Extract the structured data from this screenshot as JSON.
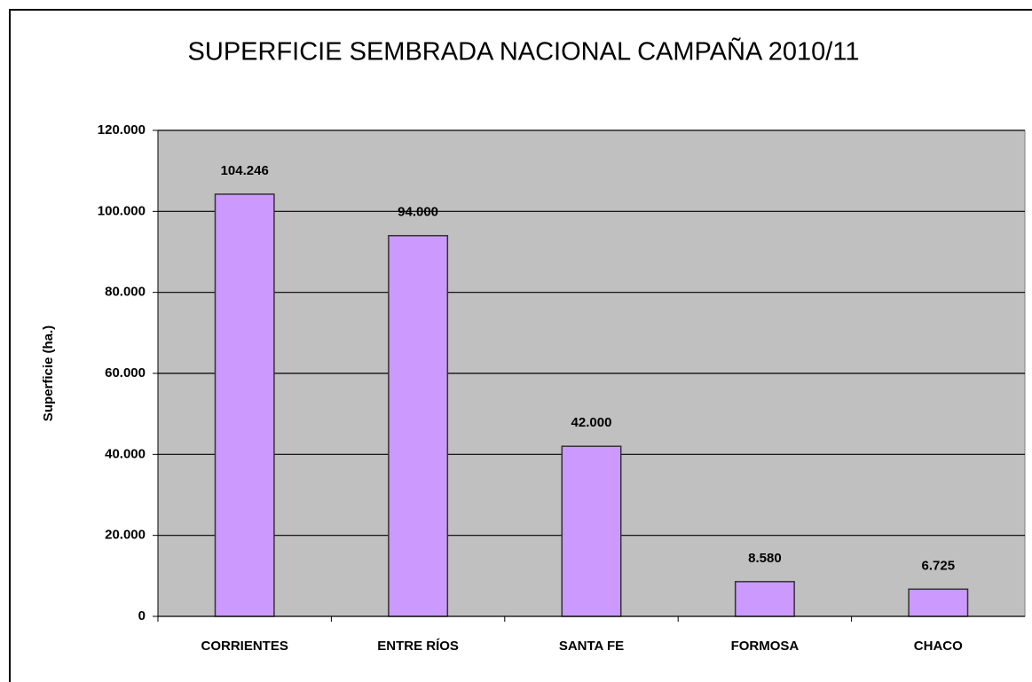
{
  "chart_data": {
    "type": "bar",
    "title": "SUPERFICIE SEMBRADA NACIONAL CAMPAÑA 2010/11",
    "y_label": "Superficie (ha.)",
    "categories": [
      "CORRIENTES",
      "ENTRE RÍOS",
      "SANTA FE",
      "FORMOSA",
      "CHACO"
    ],
    "values": [
      104246,
      94000,
      42000,
      8580,
      6725
    ],
    "value_labels": [
      "104.246",
      "94.000",
      "42.000",
      "8.580",
      "6.725"
    ],
    "color": "#cc99ff",
    "ylim": [
      0,
      120000
    ],
    "yticks": [
      0,
      {
        "value": 20000,
        "label": "20.000"
      },
      {
        "value": 40000,
        "label": "40.000"
      },
      {
        "value": 60000,
        "label": "60.000"
      },
      {
        "value": 80000,
        "label": "80.000"
      },
      {
        "value": 100000,
        "label": "100.000"
      },
      {
        "value": 120000,
        "label": "120.000"
      }
    ],
    "grid": true
  }
}
